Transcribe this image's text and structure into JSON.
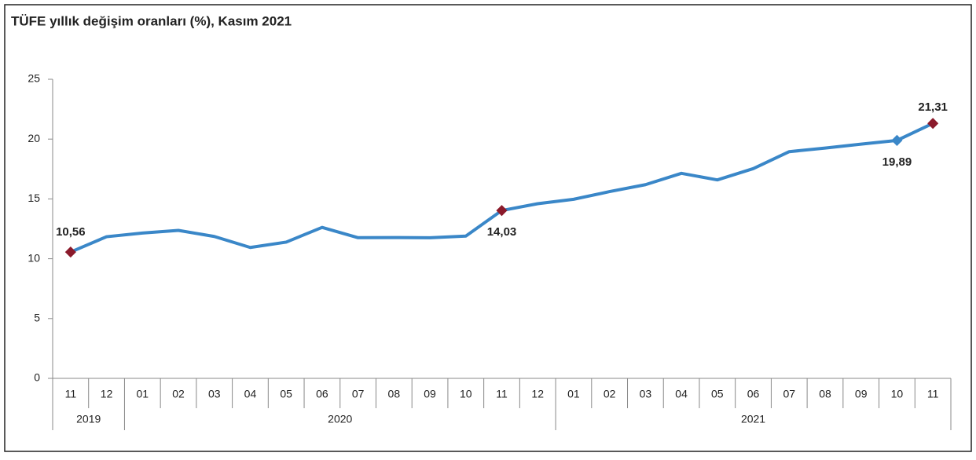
{
  "chart_data": {
    "type": "line",
    "title": "TÜFE yıllık değişim oranları (%), Kasım 2021",
    "categories": [
      "11",
      "12",
      "01",
      "02",
      "03",
      "04",
      "05",
      "06",
      "07",
      "08",
      "09",
      "10",
      "11",
      "12",
      "01",
      "02",
      "03",
      "04",
      "05",
      "06",
      "07",
      "08",
      "09",
      "10",
      "11"
    ],
    "year_groups": [
      {
        "label": "2019",
        "count": 2
      },
      {
        "label": "2020",
        "count": 12
      },
      {
        "label": "2021",
        "count": 11
      }
    ],
    "series": [
      {
        "color": "#3a87c8",
        "values": [
          10.56,
          11.84,
          12.15,
          12.37,
          11.86,
          10.94,
          11.39,
          12.62,
          11.76,
          11.77,
          11.75,
          11.89,
          14.03,
          14.6,
          14.97,
          15.61,
          16.19,
          17.14,
          16.59,
          17.53,
          18.95,
          19.25,
          19.58,
          19.89,
          21.31
        ],
        "value_labels": [
          "10,56",
          null,
          null,
          null,
          null,
          null,
          null,
          null,
          null,
          null,
          null,
          null,
          "14,03",
          null,
          null,
          null,
          null,
          null,
          null,
          null,
          null,
          null,
          null,
          "19,89",
          "21,31"
        ],
        "marker_colors": [
          "#8b1a2b",
          null,
          null,
          null,
          null,
          null,
          null,
          null,
          null,
          null,
          null,
          null,
          "#8b1a2b",
          null,
          null,
          null,
          null,
          null,
          null,
          null,
          null,
          null,
          null,
          "#3a87c8",
          "#8b1a2b"
        ]
      }
    ],
    "ylim": [
      0,
      25
    ],
    "yticks": [
      0,
      5,
      10,
      15,
      20,
      25
    ]
  }
}
